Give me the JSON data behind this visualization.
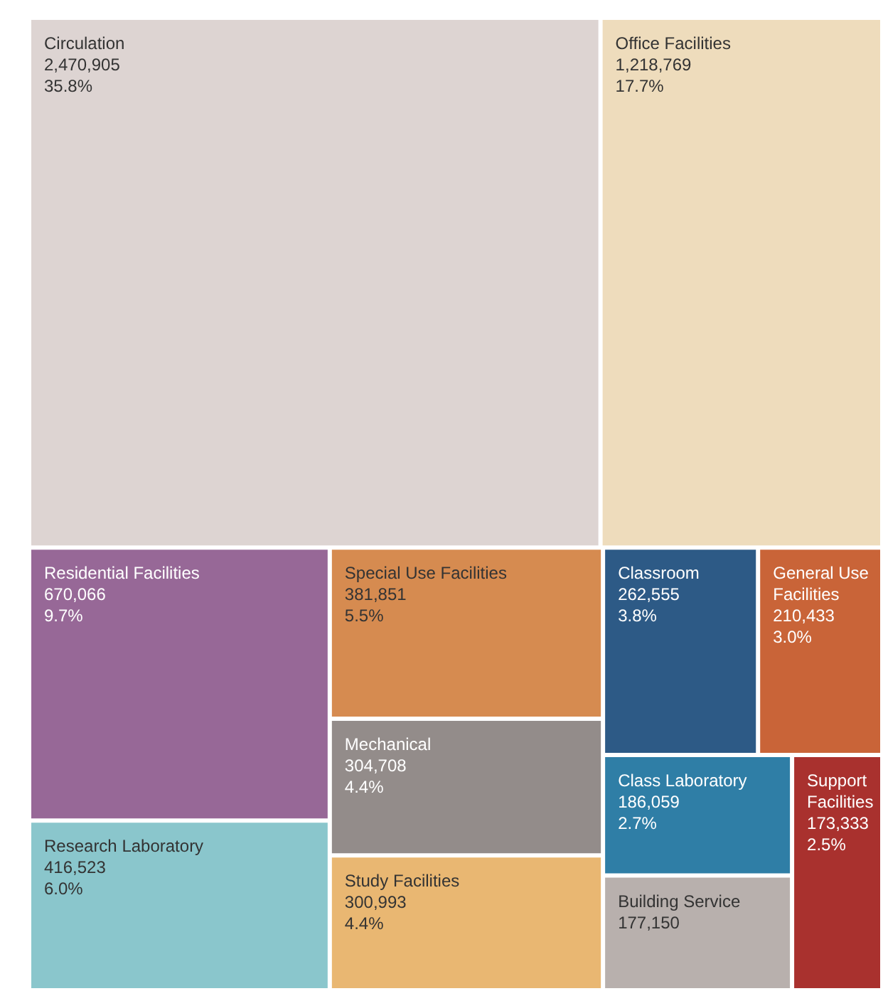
{
  "chart_data": {
    "type": "other",
    "categories": [
      "Circulation",
      "Office Facilities",
      "Residential Facilities",
      "Research Laboratory",
      "Special Use Facilities",
      "Mechanical",
      "Study Facilities",
      "Classroom",
      "General Use Facilities",
      "Class Laboratory",
      "Building Service",
      "Support Facilities"
    ],
    "values": [
      2470905,
      1218769,
      670066,
      416523,
      381851,
      304708,
      300993,
      262555,
      210433,
      186059,
      177150,
      173333
    ],
    "value_labels": [
      "2,470,905\n35.8%",
      "1,218,769\n17.7%",
      "670,066\n9.7%",
      "416,523\n6.0%",
      "381,851\n5.5%",
      "304,708\n4.4%",
      "300,993\n4.4%",
      "262,555\n3.8%",
      "210,433\n3.0%",
      "186,059\n2.7%",
      "177,150",
      "173,333\n2.5%"
    ],
    "colors": [
      "#ddd4d2",
      "#eedcbc",
      "#976897",
      "#8ac6cc",
      "#d68b50",
      "#938c8a",
      "#e9b772",
      "#2d5a86",
      "#c96438",
      "#2f7ea6",
      "#b8b0ad",
      "#a9312e"
    ]
  }
}
